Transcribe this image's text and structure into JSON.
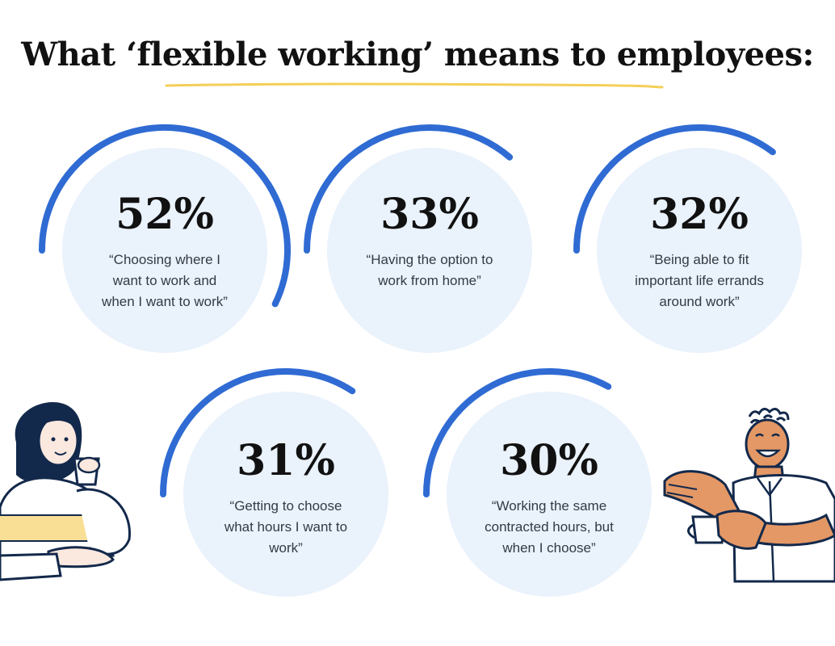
{
  "title": "What ‘flexible working’ means to employees:",
  "colors": {
    "arc": "#2f6bd3",
    "circle": "#eaf2fc",
    "underline": "#f4cf58",
    "text": "#111111"
  },
  "chart_data": {
    "type": "gauge",
    "title": "What ‘flexible working’ means to employees:",
    "unit": "%",
    "max": 100,
    "items": [
      {
        "value": 52,
        "label": "52%",
        "lines": [
          "“Choosing where I",
          "want to work and",
          "when I want to work”"
        ]
      },
      {
        "value": 33,
        "label": "33%",
        "lines": [
          "“Having the option to",
          "work from home”"
        ]
      },
      {
        "value": 32,
        "label": "32%",
        "lines": [
          "“Being able to fit",
          "important life errands",
          "around work”"
        ]
      },
      {
        "value": 31,
        "label": "31%",
        "lines": [
          "“Getting to choose",
          "what hours I want to",
          "work”"
        ]
      },
      {
        "value": 30,
        "label": "30%",
        "lines": [
          "“Working the same",
          "contracted hours, but",
          "when I choose”"
        ]
      }
    ]
  },
  "illustrations": [
    "woman-drinking-icon",
    "man-with-coffee-icon"
  ]
}
